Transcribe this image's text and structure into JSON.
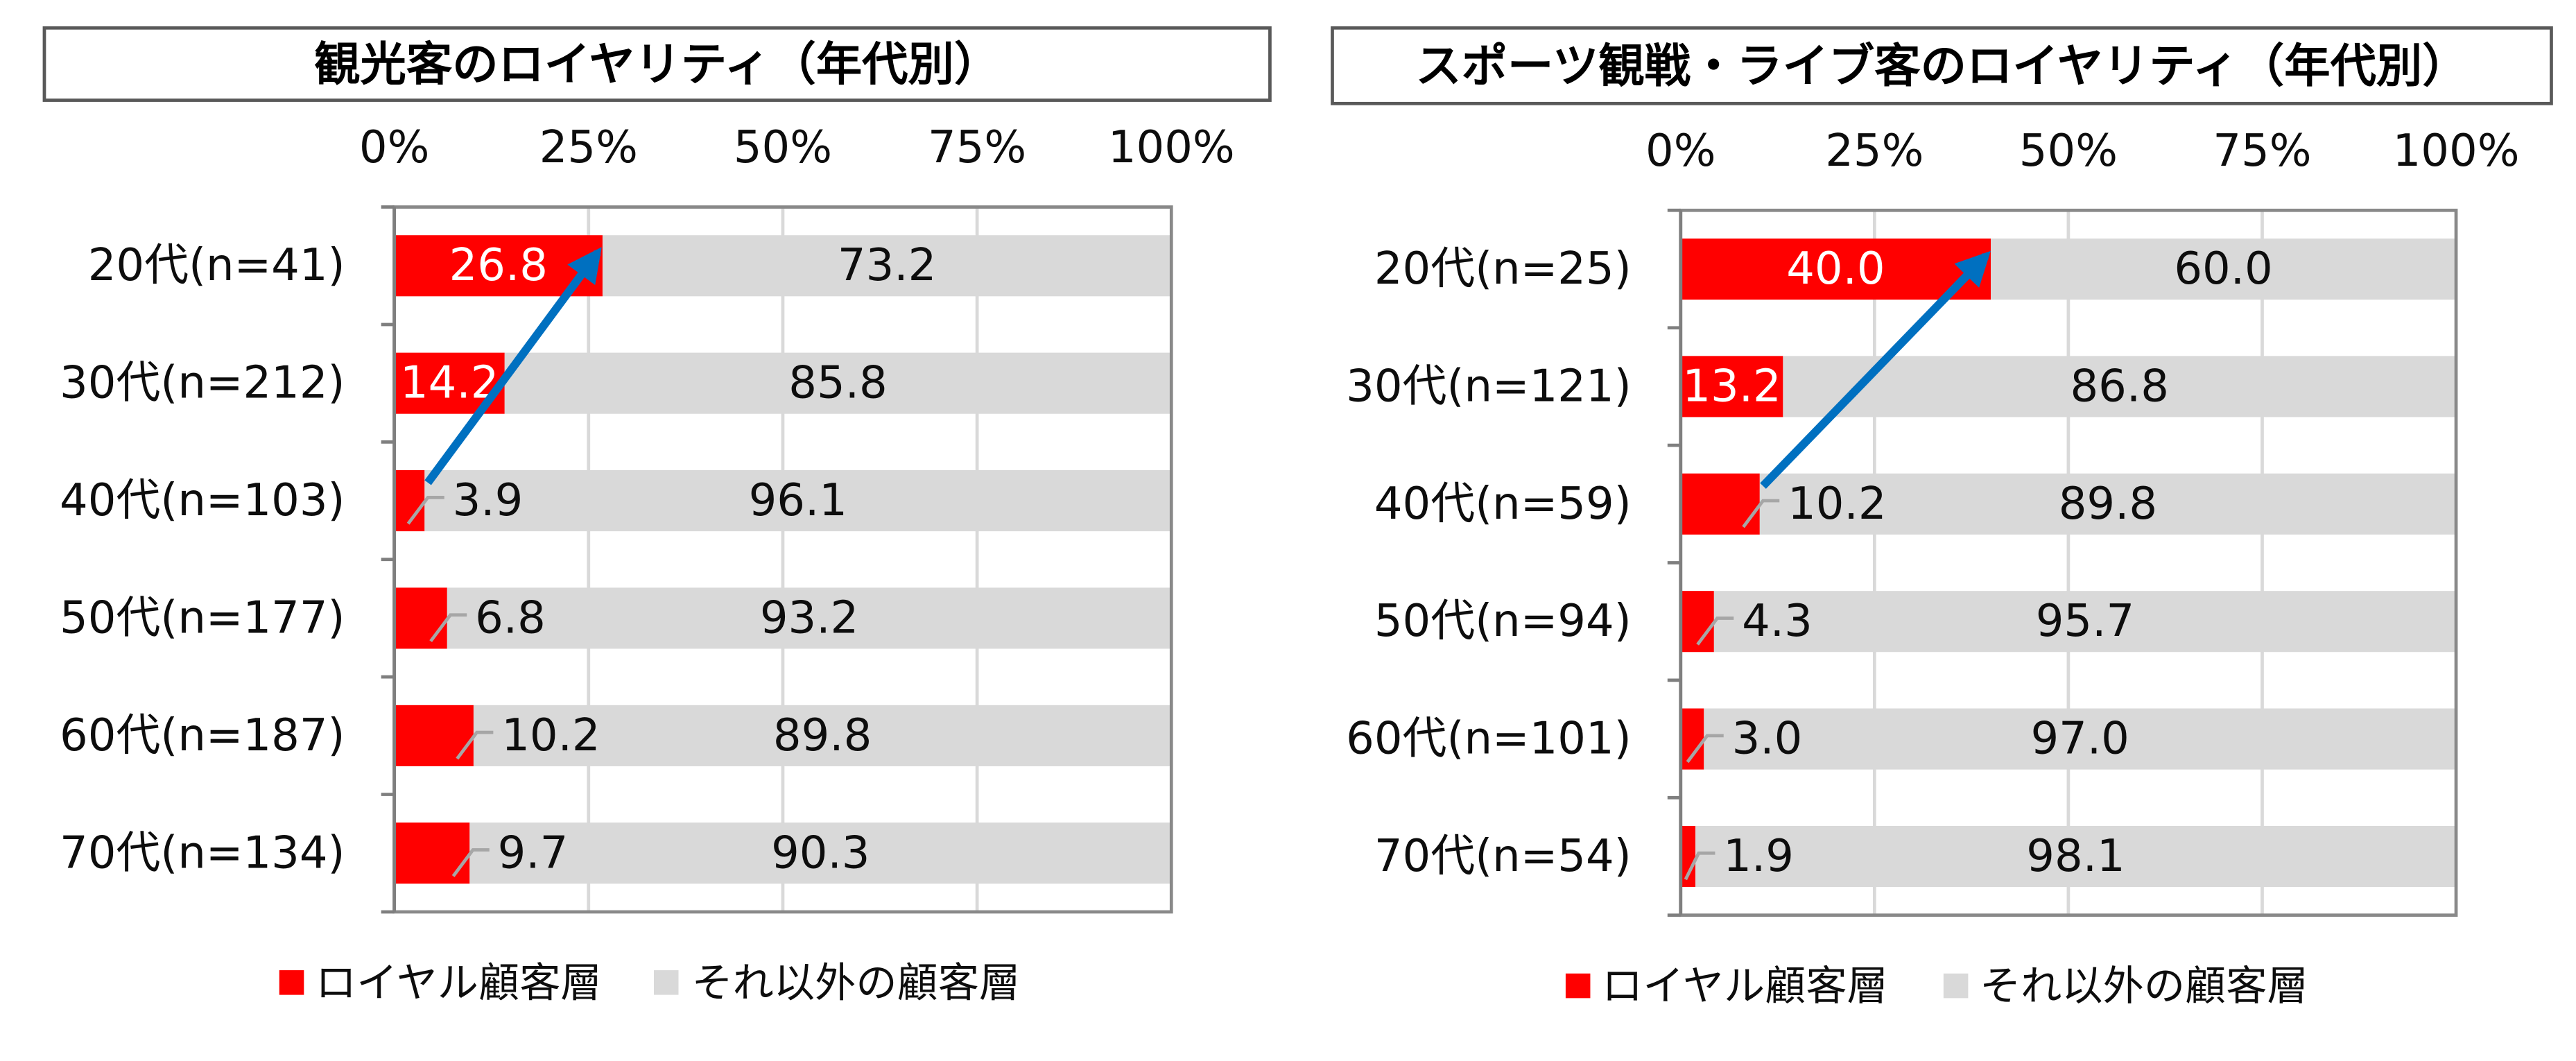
{
  "chart_data": [
    {
      "type": "bar",
      "horizontal": true,
      "stacked": true,
      "title": "観光客のロイヤリティ（年代別）",
      "categories": [
        "20代(n=41)",
        "30代(n=212)",
        "40代(n=103)",
        "50代(n=177)",
        "60代(n=187)",
        "70代(n=134)"
      ],
      "series": [
        {
          "name": "ロイヤル顧客層",
          "values": [
            26.8,
            14.2,
            3.9,
            6.8,
            10.2,
            9.7
          ],
          "color": "#FF0000"
        },
        {
          "name": "それ以外の顧客層",
          "values": [
            73.2,
            85.8,
            96.1,
            93.2,
            89.8,
            90.3
          ],
          "color": "#D9D9D9"
        }
      ],
      "value_axis": {
        "min": 0,
        "max": 100,
        "ticks": [
          0,
          25,
          50,
          75,
          100
        ],
        "tick_labels": [
          "0%",
          "25%",
          "50%",
          "75%",
          "100%"
        ],
        "position": "top"
      },
      "grid": true,
      "legend": "bottom",
      "data_labels": true,
      "arrow": {
        "from_category": 2,
        "to_category": 0,
        "color": "#0070C0"
      }
    },
    {
      "type": "bar",
      "horizontal": true,
      "stacked": true,
      "title": "スポーツ観戦・ライブ客のロイヤリティ（年代別）",
      "categories": [
        "20代(n=25)",
        "30代(n=121)",
        "40代(n=59)",
        "50代(n=94)",
        "60代(n=101)",
        "70代(n=54)"
      ],
      "series": [
        {
          "name": "ロイヤル顧客層",
          "values": [
            40.0,
            13.2,
            10.2,
            4.3,
            3.0,
            1.9
          ],
          "color": "#FF0000"
        },
        {
          "name": "それ以外の顧客層",
          "values": [
            60.0,
            86.8,
            89.8,
            95.7,
            97.0,
            98.1
          ],
          "color": "#D9D9D9"
        }
      ],
      "value_axis": {
        "min": 0,
        "max": 100,
        "ticks": [
          0,
          25,
          50,
          75,
          100
        ],
        "tick_labels": [
          "0%",
          "25%",
          "50%",
          "75%",
          "100%"
        ],
        "position": "top"
      },
      "grid": true,
      "legend": "bottom",
      "data_labels": true,
      "arrow": {
        "from_category": 2,
        "to_category": 0,
        "color": "#0070C0"
      }
    }
  ]
}
